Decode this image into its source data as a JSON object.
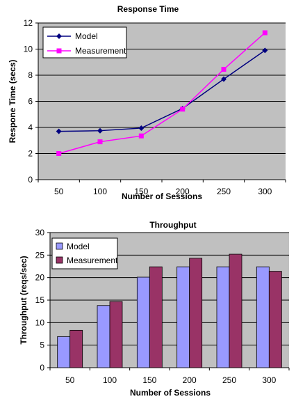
{
  "chart_data": [
    {
      "type": "line",
      "title": "Response Time",
      "xlabel": "Number of Sessions",
      "ylabel": "Respone Time (secs)",
      "categories": [
        "50",
        "100",
        "150",
        "200",
        "250",
        "300"
      ],
      "ylim": [
        0,
        12
      ],
      "yticks": [
        0,
        2,
        4,
        6,
        8,
        10,
        12
      ],
      "grid": true,
      "legend": "top-left",
      "series": [
        {
          "name": "Model",
          "color": "#000080",
          "marker": "diamond",
          "values": [
            3.7,
            3.75,
            3.95,
            5.45,
            7.7,
            9.9
          ]
        },
        {
          "name": "Measurement",
          "color": "#ff00ff",
          "marker": "square",
          "values": [
            2.0,
            2.9,
            3.35,
            5.4,
            8.45,
            11.25
          ]
        }
      ]
    },
    {
      "type": "bar",
      "title": "Throughput",
      "xlabel": "Number of Sessions",
      "ylabel": "Throughput (reqs/sec)",
      "categories": [
        "50",
        "100",
        "150",
        "200",
        "250",
        "300"
      ],
      "ylim": [
        0,
        30
      ],
      "yticks": [
        0,
        5,
        10,
        15,
        20,
        25,
        30
      ],
      "grid": true,
      "legend": "top-left",
      "series": [
        {
          "name": "Model",
          "color": "#9999ff",
          "values": [
            6.9,
            13.8,
            20.1,
            22.4,
            22.4,
            22.4
          ]
        },
        {
          "name": "Measurement",
          "color": "#993366",
          "values": [
            8.3,
            14.7,
            22.4,
            24.3,
            25.2,
            21.4
          ]
        }
      ]
    }
  ]
}
